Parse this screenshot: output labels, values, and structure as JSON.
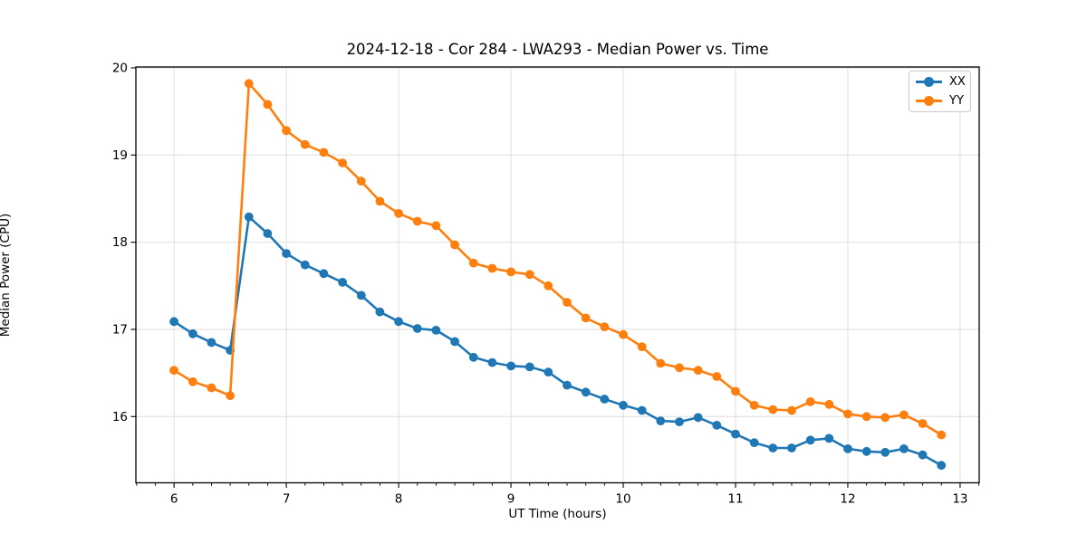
{
  "figure": {
    "title": "2024-12-18 - Cor 284 - LWA293 - Median Power vs. Time",
    "x_axis_label": "UT Time (hours)",
    "y_axis_label": "Median Power (CPU)"
  },
  "legend": {
    "items": [
      {
        "label": "XX",
        "color": "#1f77b4"
      },
      {
        "label": "YY",
        "color": "#ff7f0e"
      }
    ]
  },
  "colors": {
    "grid": "#dedede",
    "spine": "#000000",
    "tick": "#000000",
    "background": "#ffffff",
    "series_xx": "#1f77b4",
    "series_yy": "#ff7f0e"
  },
  "chart_data": {
    "type": "line",
    "title": "2024-12-18 - Cor 284 - LWA293 - Median Power vs. Time",
    "xlabel": "UT Time (hours)",
    "ylabel": "Median Power (CPU)",
    "xlim": [
      5.66,
      13.17
    ],
    "ylim": [
      15.24,
      20.01
    ],
    "x_ticks": [
      6,
      7,
      8,
      9,
      10,
      11,
      12,
      13
    ],
    "y_ticks": [
      16,
      17,
      18,
      19,
      20
    ],
    "x_minor_tick_step": 0.166667,
    "grid": true,
    "legend_position": "upper right",
    "marker": "o",
    "x": [
      6.0,
      6.167,
      6.333,
      6.5,
      6.667,
      6.833,
      7.0,
      7.167,
      7.333,
      7.5,
      7.667,
      7.833,
      8.0,
      8.167,
      8.333,
      8.5,
      8.667,
      8.833,
      9.0,
      9.167,
      9.333,
      9.5,
      9.667,
      9.833,
      10.0,
      10.167,
      10.333,
      10.5,
      10.667,
      10.833,
      11.0,
      11.167,
      11.333,
      11.5,
      11.667,
      11.833,
      12.0,
      12.167,
      12.333,
      12.5,
      12.667,
      12.833
    ],
    "series": [
      {
        "name": "XX",
        "color": "#1f77b4",
        "values": [
          17.09,
          16.95,
          16.85,
          16.76,
          18.29,
          18.1,
          17.87,
          17.74,
          17.64,
          17.54,
          17.39,
          17.2,
          17.09,
          17.01,
          16.99,
          16.86,
          16.68,
          16.62,
          16.58,
          16.57,
          16.51,
          16.36,
          16.28,
          16.2,
          16.13,
          16.07,
          15.95,
          15.94,
          15.99,
          15.9,
          15.8,
          15.7,
          15.64,
          15.64,
          15.73,
          15.75,
          15.63,
          15.6,
          15.59,
          15.63,
          15.56,
          15.44
        ]
      },
      {
        "name": "YY",
        "color": "#ff7f0e",
        "values": [
          16.53,
          16.4,
          16.33,
          16.24,
          19.82,
          19.58,
          19.28,
          19.12,
          19.03,
          18.91,
          18.7,
          18.47,
          18.33,
          18.24,
          18.19,
          17.97,
          17.76,
          17.7,
          17.66,
          17.63,
          17.5,
          17.31,
          17.13,
          17.03,
          16.94,
          16.8,
          16.61,
          16.56,
          16.53,
          16.46,
          16.29,
          16.13,
          16.08,
          16.07,
          16.17,
          16.14,
          16.03,
          16.0,
          15.99,
          16.02,
          15.92,
          15.79
        ]
      }
    ]
  }
}
